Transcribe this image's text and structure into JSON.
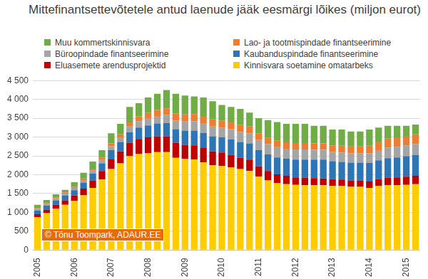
{
  "chart_data": {
    "type": "bar",
    "title": "Mittefinantsettevõtetele antud laenude jääk eesmärgi lõikes (miljon eurot)",
    "annotation": "© Tõnu Toompark, ADAUR.EE",
    "stacked": true,
    "grid": true,
    "legend": "top",
    "categories": [
      "2005",
      null,
      null,
      null,
      "2006",
      null,
      null,
      null,
      "2007",
      null,
      null,
      null,
      "2008",
      null,
      null,
      null,
      "2009",
      null,
      null,
      null,
      "2010",
      null,
      null,
      null,
      "2011",
      null,
      null,
      null,
      "2012",
      null,
      null,
      null,
      "2013",
      null,
      null,
      null,
      "2014",
      null,
      null,
      null,
      "2015",
      null
    ],
    "ylim": [
      0,
      4500
    ],
    "yticks": [
      0,
      500,
      {
        "value": 1000,
        "label": "1 000"
      },
      {
        "value": 1500,
        "label": "1 500"
      },
      {
        "value": 2000,
        "label": "2 000"
      },
      {
        "value": 2500,
        "label": "2 500"
      },
      {
        "value": 3000,
        "label": "3 000"
      },
      {
        "value": 3500,
        "label": "3 500"
      },
      {
        "value": 4000,
        "label": "4 000"
      },
      {
        "value": 4500,
        "label": "4 500"
      }
    ],
    "series": [
      {
        "name": "Kinnisvara soetamine omatarbeks",
        "color": "#FFCC00",
        "values": [
          870,
          980,
          1100,
          1200,
          1300,
          1450,
          1650,
          1870,
          2150,
          2300,
          2500,
          2550,
          2570,
          2600,
          2600,
          2450,
          2420,
          2400,
          2330,
          2250,
          2230,
          2200,
          2150,
          2100,
          1950,
          1850,
          1780,
          1750,
          1730,
          1720,
          1720,
          1720,
          1700,
          1700,
          1680,
          1680,
          1650,
          1700,
          1720,
          1720,
          1730,
          1750
        ]
      },
      {
        "name": "Eluasemete arendusprojektid",
        "color": "#C00000",
        "values": [
          80,
          90,
          100,
          120,
          150,
          180,
          200,
          230,
          270,
          320,
          350,
          400,
          420,
          420,
          420,
          400,
          370,
          380,
          380,
          370,
          360,
          330,
          300,
          300,
          270,
          250,
          230,
          220,
          200,
          200,
          190,
          180,
          180,
          170,
          170,
          170,
          170,
          180,
          200,
          210,
          220,
          220
        ]
      },
      {
        "name": "Kaubanduspindade finantseerimine",
        "color": "#2E75B6",
        "values": [
          100,
          110,
          120,
          130,
          140,
          160,
          180,
          200,
          230,
          250,
          280,
          300,
          320,
          340,
          350,
          360,
          380,
          390,
          400,
          400,
          400,
          410,
          420,
          430,
          430,
          440,
          450,
          460,
          470,
          480,
          490,
          500,
          480,
          470,
          470,
          470,
          490,
          500,
          520,
          530,
          540,
          550
        ]
      },
      {
        "name": "Büroopindade finantseerimine",
        "color": "#A5A5A5",
        "values": [
          40,
          40,
          50,
          50,
          60,
          70,
          80,
          90,
          110,
          120,
          150,
          170,
          180,
          200,
          220,
          230,
          240,
          250,
          260,
          260,
          260,
          270,
          270,
          270,
          270,
          270,
          270,
          260,
          270,
          270,
          260,
          260,
          250,
          250,
          250,
          250,
          260,
          270,
          280,
          280,
          290,
          290
        ]
      },
      {
        "name": "Lao- ja tootmispindade  finantseerimine",
        "color": "#ED7D31",
        "values": [
          20,
          20,
          20,
          30,
          30,
          40,
          50,
          60,
          70,
          80,
          110,
          130,
          150,
          160,
          170,
          180,
          190,
          190,
          190,
          190,
          180,
          180,
          180,
          180,
          170,
          170,
          170,
          170,
          170,
          170,
          170,
          170,
          170,
          180,
          180,
          180,
          200,
          230,
          240,
          250,
          250,
          260
        ]
      },
      {
        "name": "Muu kommertskinnisvara",
        "color": "#70AD47",
        "values": [
          90,
          90,
          90,
          70,
          120,
          150,
          190,
          200,
          270,
          280,
          410,
          350,
          410,
          430,
          490,
          530,
          500,
          470,
          490,
          480,
          420,
          410,
          430,
          370,
          410,
          470,
          500,
          490,
          510,
          510,
          470,
          470,
          420,
          430,
          400,
          400,
          430,
          370,
          340,
          310,
          270,
          260
        ]
      }
    ]
  }
}
